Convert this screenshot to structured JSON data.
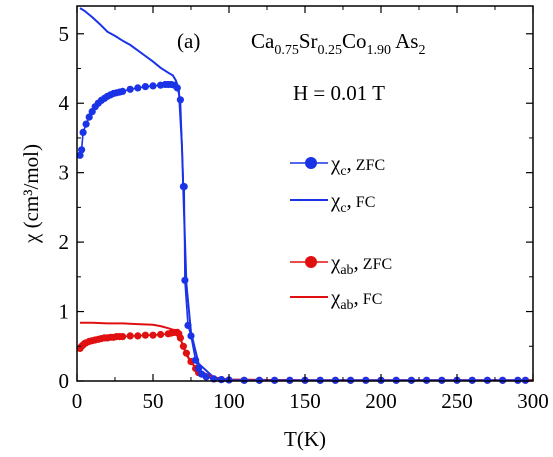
{
  "chart_data": {
    "type": "scatter",
    "panel_label": "(a)",
    "compound": {
      "parts": [
        {
          "text": "Ca",
          "sub": false
        },
        {
          "text": "0.75",
          "sub": true
        },
        {
          "text": "Sr",
          "sub": false
        },
        {
          "text": "0.25",
          "sub": true
        },
        {
          "text": "Co",
          "sub": false
        },
        {
          "text": "1.90",
          "sub": true
        },
        {
          "text": " As",
          "sub": false
        },
        {
          "text": "2",
          "sub": true
        }
      ]
    },
    "field_label": "H = 0.01 T",
    "xlabel": "T(K)",
    "ylabel": "χ (cm³/mol)",
    "xlim": [
      0,
      300
    ],
    "ylim": [
      0,
      5.4
    ],
    "xticks": [
      0,
      50,
      100,
      150,
      200,
      250,
      300
    ],
    "yticks": [
      0,
      1,
      2,
      3,
      4,
      5
    ],
    "grid": false,
    "legend_position": "right",
    "series": [
      {
        "name": "χc, ZFC",
        "label": {
          "sym": "χ",
          "sub": "c",
          "rest": ", ZFC"
        },
        "color": "#1a33e6",
        "style": "line-markers",
        "x": [
          2,
          3,
          4,
          6,
          8,
          10,
          12,
          14,
          16,
          18,
          20,
          22,
          24,
          26,
          28,
          30,
          35,
          40,
          45,
          50,
          55,
          58,
          60,
          62,
          64,
          66,
          68,
          70,
          70.5,
          71,
          73,
          75,
          78,
          80,
          82,
          85,
          90,
          95,
          100,
          110,
          120,
          130,
          140,
          150,
          160,
          170,
          180,
          190,
          200,
          210,
          220,
          230,
          240,
          250,
          260,
          270,
          280,
          290,
          295
        ],
        "y": [
          3.25,
          3.33,
          3.58,
          3.7,
          3.8,
          3.88,
          3.95,
          4.0,
          4.04,
          4.07,
          4.1,
          4.12,
          4.14,
          4.15,
          4.16,
          4.17,
          4.2,
          4.22,
          4.24,
          4.25,
          4.26,
          4.27,
          4.27,
          4.27,
          4.26,
          4.22,
          4.05,
          2.8,
          2.8,
          1.45,
          0.8,
          0.65,
          0.3,
          0.18,
          0.1,
          0.06,
          0.03,
          0.02,
          0.015,
          0.01,
          0.01,
          0.01,
          0.01,
          0.01,
          0.01,
          0.01,
          0.01,
          0.01,
          0.01,
          0.01,
          0.01,
          0.01,
          0.01,
          0.01,
          0.01,
          0.01,
          0.01,
          0.01,
          0.01
        ]
      },
      {
        "name": "χc, FC",
        "label": {
          "sym": "χ",
          "sub": "c",
          "rest": ", FC"
        },
        "color": "#1a33e6",
        "style": "line",
        "x": [
          2,
          5,
          10,
          15,
          20,
          25,
          30,
          35,
          40,
          45,
          50,
          55,
          60,
          63,
          65,
          67,
          69,
          70,
          72,
          75,
          80,
          90,
          100,
          150,
          200,
          250,
          300
        ],
        "y": [
          5.37,
          5.33,
          5.24,
          5.14,
          5.03,
          4.97,
          4.9,
          4.84,
          4.76,
          4.68,
          4.6,
          4.51,
          4.44,
          4.4,
          4.33,
          4.2,
          3.4,
          2.7,
          1.4,
          0.7,
          0.25,
          0.05,
          0.02,
          0.01,
          0.01,
          0.01,
          0.01
        ]
      },
      {
        "name": "χab, ZFC",
        "label": {
          "sym": "χ",
          "sub": "ab",
          "rest": ", ZFC"
        },
        "color": "#e01010",
        "style": "line-markers",
        "x": [
          2,
          3,
          4,
          5,
          6,
          8,
          10,
          12,
          14,
          16,
          18,
          20,
          22,
          24,
          26,
          28,
          30,
          35,
          40,
          45,
          50,
          55,
          60,
          62,
          64,
          66,
          67,
          68,
          70,
          72,
          75,
          78,
          80,
          85,
          90,
          95,
          100,
          110,
          120,
          130,
          140,
          150,
          160,
          170,
          180,
          190,
          200,
          210,
          220,
          230,
          240,
          250,
          260,
          270,
          280,
          290,
          295
        ],
        "y": [
          0.47,
          0.5,
          0.52,
          0.54,
          0.55,
          0.57,
          0.58,
          0.59,
          0.6,
          0.61,
          0.62,
          0.62,
          0.63,
          0.63,
          0.64,
          0.64,
          0.64,
          0.65,
          0.65,
          0.66,
          0.66,
          0.67,
          0.68,
          0.69,
          0.7,
          0.7,
          0.68,
          0.62,
          0.5,
          0.4,
          0.28,
          0.18,
          0.12,
          0.06,
          0.03,
          0.02,
          0.015,
          0.01,
          0.01,
          0.01,
          0.01,
          0.01,
          0.01,
          0.01,
          0.01,
          0.01,
          0.01,
          0.01,
          0.01,
          0.01,
          0.01,
          0.01,
          0.01,
          0.01,
          0.01,
          0.01,
          0.01
        ]
      },
      {
        "name": "χab, FC",
        "label": {
          "sym": "χ",
          "sub": "ab",
          "rest": ", FC"
        },
        "color": "#e01010",
        "style": "line",
        "x": [
          2,
          10,
          20,
          30,
          40,
          50,
          55,
          60,
          63,
          65,
          67,
          70,
          72,
          75,
          80,
          90,
          100,
          150,
          200,
          250,
          300
        ],
        "y": [
          0.84,
          0.84,
          0.83,
          0.83,
          0.82,
          0.81,
          0.79,
          0.76,
          0.74,
          0.71,
          0.66,
          0.5,
          0.38,
          0.27,
          0.15,
          0.05,
          0.02,
          0.01,
          0.01,
          0.01,
          0.01
        ]
      }
    ]
  }
}
